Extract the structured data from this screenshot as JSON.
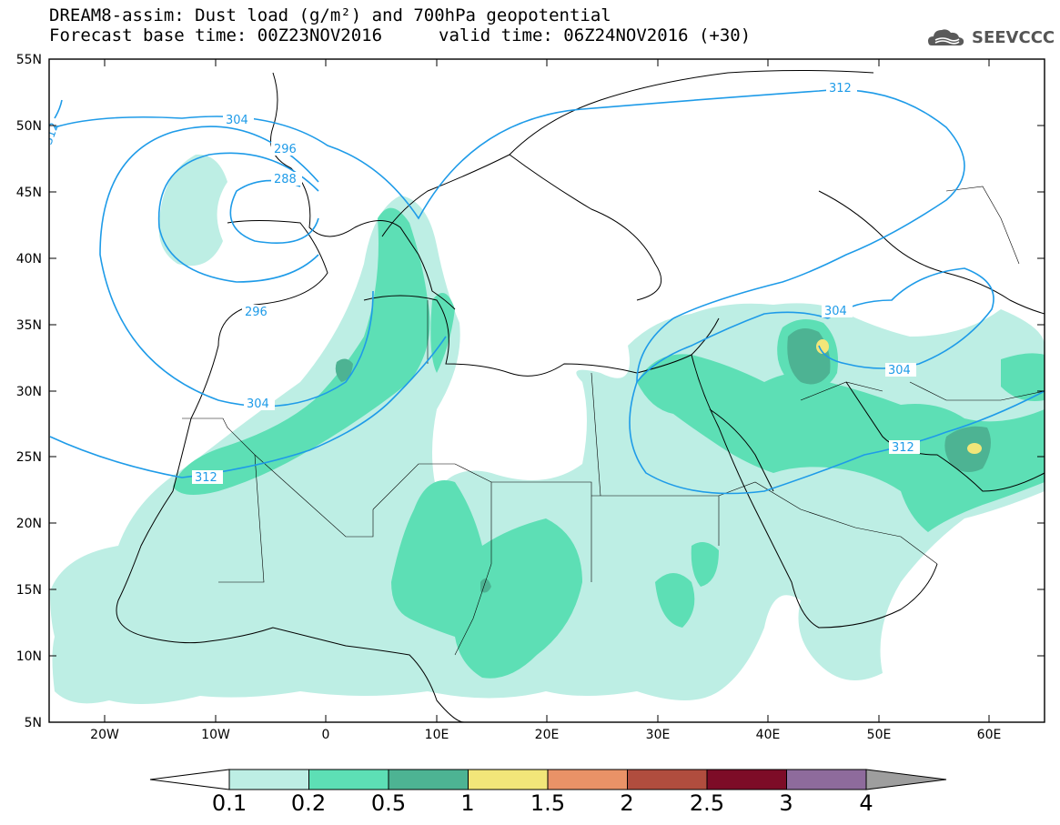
{
  "header": {
    "title_line1": "DREAM8-assim: Dust load (g/m²) and 700hPa geopotential",
    "title_line2": "Forecast base time: 00Z23NOV2016",
    "valid_time": "valid time: 06Z24NOV2016 (+30)",
    "logo_text": "SEEVCCC"
  },
  "axes": {
    "lat_labels": [
      "55N",
      "50N",
      "45N",
      "40N",
      "35N",
      "30N",
      "25N",
      "20N",
      "15N",
      "10N",
      "5N"
    ],
    "lon_labels": [
      "20W",
      "10W",
      "0",
      "10E",
      "20E",
      "30E",
      "40E",
      "50E",
      "60E"
    ]
  },
  "map_data": {
    "lon_range": [
      -25,
      65
    ],
    "lat_range": [
      5,
      55
    ],
    "contour_labels": [
      "304",
      "296",
      "288",
      "296",
      "304",
      "312",
      "312",
      "304",
      "304",
      "312",
      "312"
    ],
    "dust_legend": {
      "levels": [
        "0.1",
        "0.2",
        "0.5",
        "1",
        "1.5",
        "2",
        "2.5",
        "3",
        "4"
      ],
      "colors": [
        "#bdeee4",
        "#5ddfb5",
        "#4db393",
        "#f2e679",
        "#e99267",
        "#b04d3e",
        "#7d0c27",
        "#8e6b9c",
        "#9e9e9e"
      ]
    }
  }
}
